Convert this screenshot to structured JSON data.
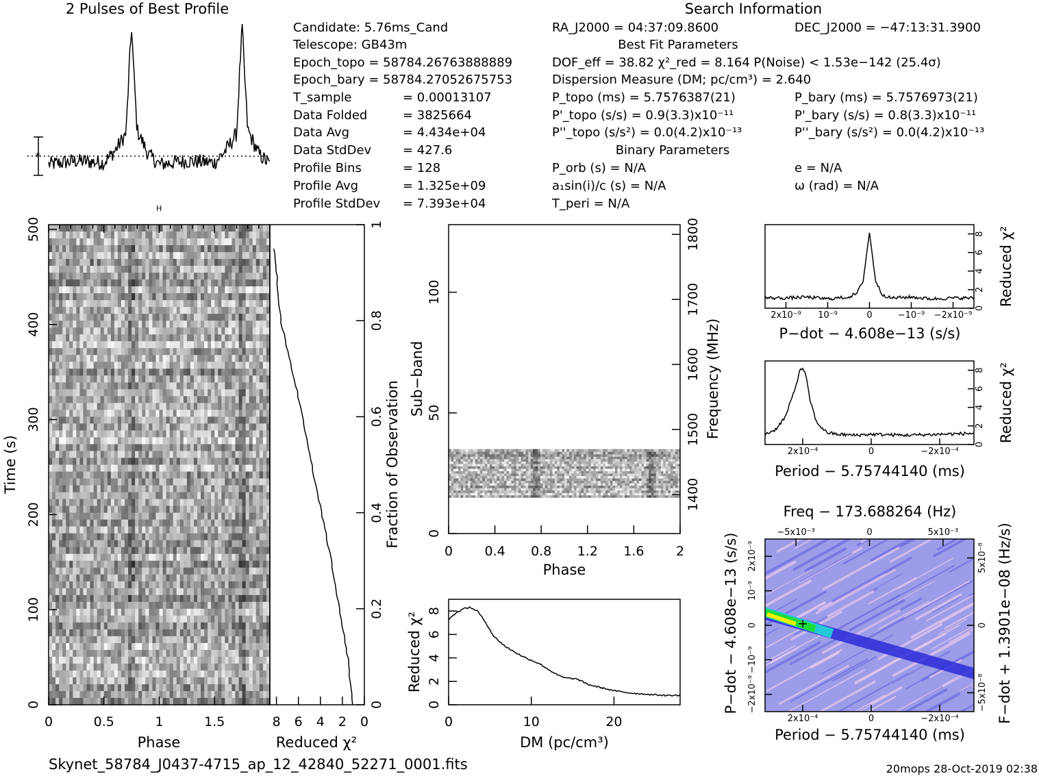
{
  "footer": {
    "filename": "Skynet_58784_J0437-4715_ap_12_42840_52271_0001.fits",
    "stamp": "20mops 28-Oct-2019 02:38"
  },
  "profile": {
    "title": "2 Pulses of Best Profile"
  },
  "info": {
    "candidate": "Candidate:  5.76ms_Cand",
    "telescope": "Telescope:  GB43m",
    "epoch_topo": "Epoch_topo = 58784.26763888889",
    "epoch_bary": "Epoch_bary = 58784.27052675753",
    "t_sample_label": "T_sample",
    "t_sample_value": "=  0.00013107",
    "data_folded_label": "Data Folded",
    "data_folded_value": "=  3825664",
    "data_avg_label": "Data Avg",
    "data_avg_value": "=  4.434e+04",
    "data_stddev_label": "Data StdDev",
    "data_stddev_value": "=  427.6",
    "profile_bins_label": "Profile Bins",
    "profile_bins_value": "=  128",
    "profile_avg_label": "Profile Avg",
    "profile_avg_value": "=  1.325e+09",
    "profile_stddev_label": "Profile StdDev",
    "profile_stddev_value": "=  7.393e+04"
  },
  "search": {
    "title": "Search Information",
    "ra": "RA_J2000 = 04:37:09.8600",
    "dec": "DEC_J2000 = −47:13:31.3900",
    "best_fit_title": "Best Fit Parameters",
    "dof": "DOF_eff = 38.82  χ²_red = 8.164  P(Noise) < 1.53e−142  (25.4σ)",
    "dm": "Dispersion Measure (DM; pc/cm³) = 2.640",
    "p_topo": "P_topo (ms) =  5.7576387(21)",
    "p_bary": "P_bary (ms) =  5.7576973(21)",
    "pd_topo": "P'_topo (s/s) =  0.9(3.3)x10⁻¹¹",
    "pd_bary": "P'_bary (s/s) =  0.8(3.3)x10⁻¹¹",
    "pdd_topo": "P''_topo (s/s²) = 0.0(4.2)x10⁻¹³",
    "pdd_bary": "P''_bary (s/s²) = 0.0(4.2)x10⁻¹³",
    "binary_title": "Binary Parameters",
    "p_orb": "P_orb (s) = N/A",
    "e": "e = N/A",
    "a1sini": "a₁sin(i)/c (s) = N/A",
    "omega": "ω (rad) = N/A",
    "t_peri": "T_peri = N/A"
  },
  "axes": {
    "time_ylabel": "Time (s)",
    "time_xlabel": "Phase",
    "time_xticks": [
      "0",
      "0.5",
      "1",
      "1.5"
    ],
    "time_yticks": [
      "0",
      "100",
      "200",
      "300",
      "400",
      "500"
    ],
    "chi_xlabel": "Reduced χ²",
    "chi_xticks": [
      "8",
      "6",
      "4",
      "2",
      "0"
    ],
    "frac_label": "Fraction of Observation",
    "frac_ticks": [
      "0",
      "0.2",
      "0.4",
      "0.6",
      "0.8",
      "1"
    ],
    "sub_ylabel": "Sub−band",
    "sub_yticks": [
      "0",
      "50",
      "100"
    ],
    "sub_xlabel": "Phase",
    "sub_xticks": [
      "0",
      "0.4",
      "0.8",
      "1.2",
      "1.6",
      "2"
    ],
    "freq_label": "Frequency (MHz)",
    "freq_ticks": [
      "1400",
      "1500",
      "1600",
      "1700",
      "1800"
    ],
    "dm_xlabel": "DM (pc/cm³)",
    "dm_ylabel": "Reduced χ²",
    "dm_xticks": [
      "0",
      "10",
      "20"
    ],
    "dm_yticks": [
      "0",
      "2",
      "4",
      "6",
      "8"
    ],
    "pdot_xlabel": "P−dot − 4.608e−13 (s/s)",
    "pdot_ylabel": "Reduced χ²",
    "pdot_xticks": [
      "2x10⁻⁹",
      "10⁻⁹",
      "0",
      "−10⁻⁹",
      "−2x10⁻⁹"
    ],
    "pdot_yticks": [
      "0",
      "2",
      "4",
      "6",
      "8"
    ],
    "period_xlabel": "Period − 5.75744140 (ms)",
    "period_ylabel": "Reduced χ²",
    "period_xticks": [
      "2x10⁻⁴",
      "0",
      "−2x10⁻⁴"
    ],
    "period_yticks": [
      "0",
      "2",
      "4",
      "6",
      "8"
    ],
    "ppd_title": "Freq − 173.688264 (Hz)",
    "ppd_topticks": [
      "−5x10⁻³",
      "0",
      "5x10⁻³"
    ],
    "ppd_xlabel": "Period − 5.75744140 (ms)",
    "ppd_xticks": [
      "2x10⁻⁴",
      "0",
      "−2x10⁻⁴"
    ],
    "ppd_ylabel": "P−dot − 4.608e−13 (s/s)",
    "ppd_yticks": [
      "2x10⁻⁹",
      "10⁻⁹",
      "0",
      "−10⁻⁹",
      "−2x10⁻⁹"
    ],
    "ppd_rlabel": "F−dot + 1.3901e−08 (Hz/s)",
    "ppd_rticks": [
      "−5x10⁻⁸",
      "0",
      "5x10⁻⁸"
    ]
  },
  "colors": {
    "line": "#000000",
    "ppd_background": "#9c9ce8",
    "ppd_stripe_light": "#e6c8ee",
    "ppd_ridge": "#2b2bd8",
    "ppd_core": "#1edc3c",
    "ppd_peak": "#f0f000"
  },
  "chart_data": [
    {
      "type": "line",
      "title": "2 Pulses of Best Profile",
      "x": [
        0,
        0.25,
        0.5,
        0.6,
        0.7,
        0.73,
        0.75,
        0.77,
        0.8,
        0.9,
        1.0,
        1.25,
        1.5,
        1.6,
        1.7,
        1.73,
        1.75,
        1.77,
        1.8,
        1.9,
        2.0
      ],
      "values": [
        0.2,
        0.22,
        0.21,
        0.28,
        0.38,
        0.78,
        1.0,
        0.74,
        0.4,
        0.26,
        0.2,
        0.22,
        0.21,
        0.28,
        0.38,
        0.78,
        1.0,
        0.74,
        0.4,
        0.26,
        0.2
      ],
      "xlabel": "",
      "ylabel": ""
    },
    {
      "type": "heatmap",
      "xlabel": "Phase",
      "ylabel": "Time (s)",
      "xlim": [
        0,
        2
      ],
      "ylim": [
        0,
        500
      ],
      "pulse_phases": [
        0.75,
        1.75
      ]
    },
    {
      "type": "line",
      "xlabel": "Reduced χ²",
      "ylabel": "Fraction of Observation",
      "xlim": [
        8,
        0
      ],
      "ylim": [
        0,
        1
      ],
      "x": [
        1.1,
        1.5,
        2.3,
        3.0,
        3.9,
        4.8,
        5.6,
        6.6,
        7.6,
        8.2
      ],
      "y": [
        0.0,
        0.1,
        0.2,
        0.3,
        0.4,
        0.5,
        0.6,
        0.7,
        0.8,
        0.95
      ]
    },
    {
      "type": "heatmap",
      "xlabel": "Phase",
      "ylabel": "Sub−band",
      "xlim": [
        0,
        2
      ],
      "ylim": [
        0,
        128
      ],
      "filled_subbands": [
        15,
        35
      ],
      "pulse_phases": [
        0.75,
        1.75
      ]
    },
    {
      "type": "line",
      "xlabel": "DM (pc/cm³)",
      "ylabel": "Reduced χ²",
      "xlim": [
        0,
        28
      ],
      "ylim": [
        0,
        9
      ],
      "x": [
        0,
        1,
        2,
        2.6,
        3.5,
        4.5,
        5.5,
        7,
        9,
        11,
        13,
        14,
        15.5,
        17,
        20,
        22,
        24,
        26,
        28
      ],
      "y": [
        7.3,
        7.9,
        8.25,
        8.3,
        8.0,
        7.0,
        5.8,
        4.9,
        4.1,
        3.5,
        2.6,
        2.3,
        2.2,
        1.7,
        1.2,
        1.0,
        0.9,
        0.8,
        0.8
      ]
    },
    {
      "type": "line",
      "xlabel": "P−dot − 4.608e−13 (s/s)",
      "ylabel": "Reduced χ²",
      "xlim": [
        2.5,
        -2.5
      ],
      "ylim": [
        0,
        9
      ],
      "x": [
        2.5,
        2.0,
        1.5,
        1.0,
        0.5,
        0.3,
        0.15,
        0.05,
        0,
        -0.05,
        -0.15,
        -0.3,
        -0.5,
        -1.0,
        -1.5,
        -2.0,
        -2.5
      ],
      "y": [
        1.1,
        1.1,
        1.2,
        1.0,
        1.2,
        1.6,
        3.0,
        6.5,
        8.2,
        6.3,
        2.9,
        1.5,
        1.1,
        1.2,
        1.0,
        1.1,
        1.1
      ]
    },
    {
      "type": "line",
      "xlabel": "Period − 5.75744140 (ms)",
      "ylabel": "Reduced χ²",
      "xlim": [
        3.1,
        -3.0
      ],
      "ylim": [
        0,
        9
      ],
      "x": [
        3.1,
        2.8,
        2.5,
        2.2,
        2.1,
        2.0,
        1.9,
        1.8,
        1.6,
        1.3,
        1.0,
        0.5,
        0,
        -1.0,
        -2.0,
        -3.0
      ],
      "y": [
        1.1,
        1.6,
        3.0,
        6.3,
        7.8,
        8.3,
        7.3,
        5.0,
        2.4,
        1.3,
        1.1,
        1.0,
        1.1,
        1.0,
        1.1,
        1.2
      ]
    },
    {
      "type": "heatmap",
      "xlabel": "Period − 5.75744140 (ms)",
      "ylabel": "P−dot − 4.608e−13 (s/s)",
      "peak": {
        "x": 2.0,
        "y": 0.0
      }
    }
  ]
}
